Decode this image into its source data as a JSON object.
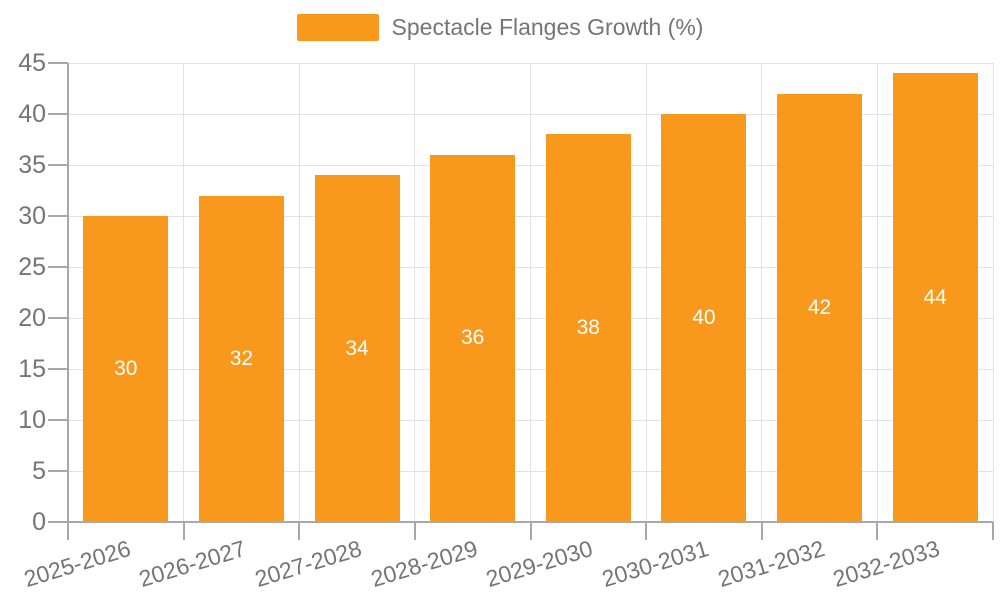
{
  "legend": {
    "label": "Spectacle Flanges Growth (%)"
  },
  "chart_data": {
    "type": "bar",
    "title": "Spectacle Flanges Growth (%)",
    "categories": [
      "2025-2026",
      "2026-2027",
      "2027-2028",
      "2028-2029",
      "2029-2030",
      "2030-2031",
      "2031-2032",
      "2032-2033"
    ],
    "values": [
      30,
      32,
      34,
      36,
      38,
      40,
      42,
      44
    ],
    "value_labels": [
      "30",
      "32",
      "34",
      "36",
      "38",
      "40",
      "42",
      "44"
    ],
    "xlabel": "",
    "ylabel": "",
    "ylim": [
      0,
      45
    ],
    "yticks": [
      0,
      5,
      10,
      15,
      20,
      25,
      30,
      35,
      40,
      45
    ],
    "grid": true,
    "legend_position": "top",
    "x_label_rotation_deg": -17
  },
  "colors": {
    "bar": "#F8981D",
    "value_label": "#FFFFFF",
    "axis_text": "#757575",
    "grid": "#E2E2E2",
    "axis_line": "#A8A8A8",
    "background": "#FFFFFF"
  }
}
